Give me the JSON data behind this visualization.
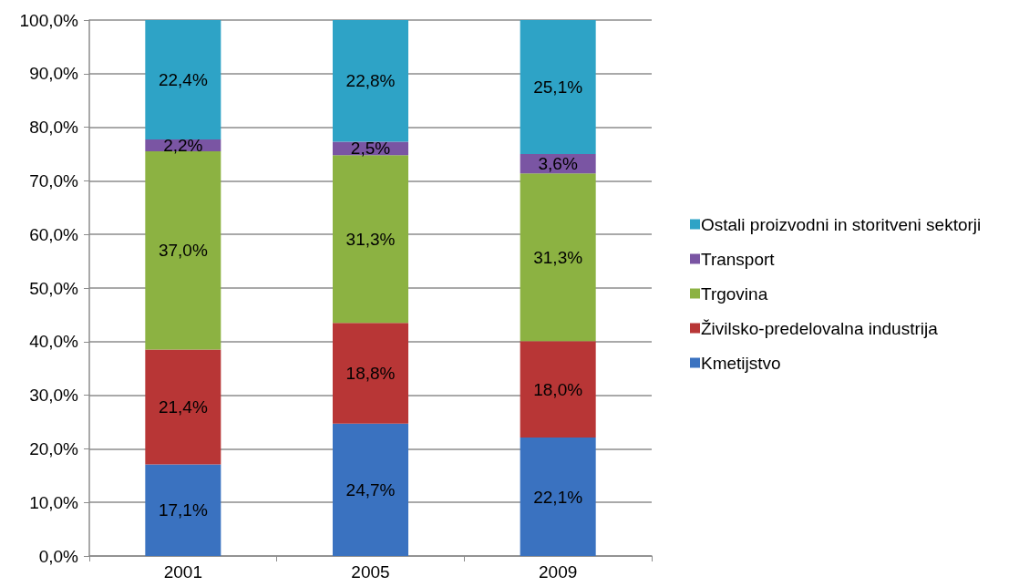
{
  "chart_data": {
    "type": "bar",
    "stacked": true,
    "categories": [
      "2001",
      "2005",
      "2009"
    ],
    "series": [
      {
        "name": "Kmetijstvo",
        "color": "#3a72c0",
        "values": [
          17.1,
          24.7,
          22.1
        ],
        "value_labels": [
          "17,1%",
          "24,7%",
          "22,1%"
        ]
      },
      {
        "name": "Živilsko-predelovalna industrija",
        "color": "#b83636",
        "values": [
          21.4,
          18.8,
          18.0
        ],
        "value_labels": [
          "21,4%",
          "18,8%",
          "18,0%"
        ]
      },
      {
        "name": "Trgovina",
        "color": "#8cb242",
        "values": [
          37.0,
          31.3,
          31.3
        ],
        "value_labels": [
          "37,0%",
          "31,3%",
          "31,3%"
        ]
      },
      {
        "name": "Transport",
        "color": "#7a55a3",
        "values": [
          2.2,
          2.5,
          3.6
        ],
        "value_labels": [
          "2,2%",
          "2,5%",
          "3,6%"
        ]
      },
      {
        "name": "Ostali proizvodni in storitveni sektorji",
        "color": "#2ea3c6",
        "values": [
          22.4,
          22.8,
          25.1
        ],
        "value_labels": [
          "22,4%",
          "22,8%",
          "25,1%"
        ]
      }
    ],
    "ylim": [
      0,
      100
    ],
    "yticks": [
      {
        "value": 0,
        "label": "0,0%"
      },
      {
        "value": 10,
        "label": "10,0%"
      },
      {
        "value": 20,
        "label": "20,0%"
      },
      {
        "value": 30,
        "label": "30,0%"
      },
      {
        "value": 40,
        "label": "40,0%"
      },
      {
        "value": 50,
        "label": "50,0%"
      },
      {
        "value": 60,
        "label": "60,0%"
      },
      {
        "value": 70,
        "label": "70,0%"
      },
      {
        "value": 80,
        "label": "80,0%"
      },
      {
        "value": 90,
        "label": "90,0%"
      },
      {
        "value": 100,
        "label": "100,0%"
      }
    ],
    "grid": "y",
    "legend": "right"
  }
}
